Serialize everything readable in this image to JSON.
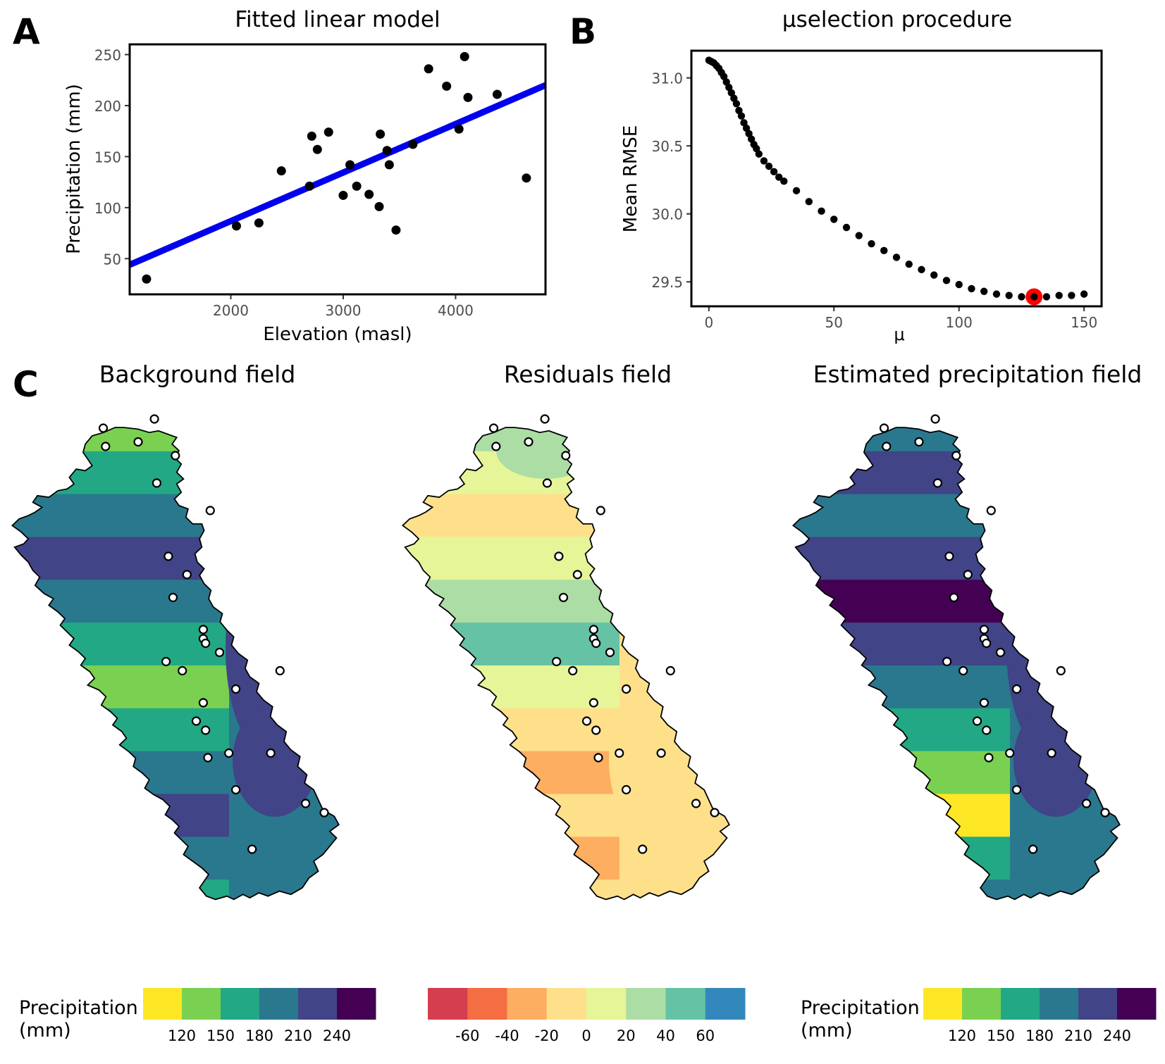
{
  "colors": {
    "line": "#0000ee",
    "point": "#000000",
    "highlight": "#ff0000",
    "outline": "#000000",
    "viridis": [
      "#fde725",
      "#7ad151",
      "#22a884",
      "#2a788e",
      "#414487",
      "#440154"
    ],
    "spectral": [
      "#d53e4f",
      "#f46d43",
      "#fdae61",
      "#fee08b",
      "#e6f598",
      "#abdda4",
      "#66c2a5",
      "#3288bd"
    ]
  },
  "panels": {
    "a": {
      "tag": "A"
    },
    "b": {
      "tag": "B"
    },
    "c": {
      "tag": "C",
      "maps": [
        {
          "title": "Background field",
          "palette": "viridis"
        },
        {
          "title": "Residuals field",
          "palette": "spectral"
        },
        {
          "title": "Estimated precipitation field",
          "palette": "viridis"
        }
      ],
      "legends": [
        {
          "title_line1": "Precipitation",
          "title_line2": "(mm)",
          "palette": "viridis",
          "labels": [
            "120",
            "150",
            "180",
            "210",
            "240"
          ]
        },
        {
          "title_line1": "",
          "title_line2": "",
          "palette": "spectral",
          "labels": [
            "-60",
            "-40",
            "-20",
            "0",
            "20",
            "40",
            "60"
          ]
        },
        {
          "title_line1": "Precipitation",
          "title_line2": "(mm)",
          "palette": "viridis",
          "labels": [
            "120",
            "150",
            "180",
            "210",
            "240"
          ]
        }
      ]
    }
  },
  "chart_data": [
    {
      "type": "scatter",
      "title": "Fitted linear model",
      "xlabel": "Elevation (masl)",
      "ylabel": "Precipitation (mm)",
      "xlim": [
        1100,
        4800
      ],
      "ylim": [
        15,
        260
      ],
      "xticks": [
        2000,
        3000,
        4000
      ],
      "yticks": [
        50,
        100,
        150,
        200,
        250
      ],
      "grid": false,
      "points": [
        {
          "x": 1250,
          "y": 30
        },
        {
          "x": 2050,
          "y": 82
        },
        {
          "x": 2250,
          "y": 85
        },
        {
          "x": 2450,
          "y": 136
        },
        {
          "x": 2700,
          "y": 121
        },
        {
          "x": 2720,
          "y": 170
        },
        {
          "x": 2770,
          "y": 157
        },
        {
          "x": 2870,
          "y": 174
        },
        {
          "x": 3000,
          "y": 112
        },
        {
          "x": 3060,
          "y": 142
        },
        {
          "x": 3120,
          "y": 121
        },
        {
          "x": 3230,
          "y": 113
        },
        {
          "x": 3320,
          "y": 101
        },
        {
          "x": 3330,
          "y": 172
        },
        {
          "x": 3390,
          "y": 156
        },
        {
          "x": 3410,
          "y": 142
        },
        {
          "x": 3470,
          "y": 78
        },
        {
          "x": 3620,
          "y": 162
        },
        {
          "x": 3760,
          "y": 236
        },
        {
          "x": 3920,
          "y": 219
        },
        {
          "x": 4030,
          "y": 177
        },
        {
          "x": 4080,
          "y": 248
        },
        {
          "x": 4110,
          "y": 208
        },
        {
          "x": 4370,
          "y": 211
        },
        {
          "x": 4630,
          "y": 129
        }
      ],
      "fit": {
        "x": [
          1100,
          4800
        ],
        "y": [
          44,
          220
        ]
      }
    },
    {
      "type": "scatter",
      "title": "μselection procedure",
      "xlabel": "μ",
      "ylabel": "Mean RMSE",
      "xlim": [
        -7,
        157
      ],
      "ylim": [
        29.32,
        31.2
      ],
      "xticks": [
        0,
        50,
        100,
        150
      ],
      "yticks": [
        29.5,
        30.0,
        30.5,
        31.0
      ],
      "grid": false,
      "x": [
        0,
        1,
        2,
        3,
        4,
        5,
        6,
        7,
        8,
        9,
        10,
        11,
        12,
        13,
        14,
        15,
        16,
        17,
        18,
        19,
        20,
        22,
        24,
        26,
        28,
        30,
        35,
        40,
        45,
        50,
        55,
        60,
        65,
        70,
        75,
        80,
        85,
        90,
        95,
        100,
        105,
        110,
        115,
        120,
        125,
        130,
        135,
        140,
        145,
        150
      ],
      "y": [
        31.13,
        31.12,
        31.11,
        31.09,
        31.07,
        31.04,
        31.01,
        30.97,
        30.93,
        30.89,
        30.85,
        30.81,
        30.76,
        30.72,
        30.67,
        30.63,
        30.59,
        30.55,
        30.51,
        30.48,
        30.44,
        30.39,
        30.35,
        30.31,
        30.27,
        30.24,
        30.17,
        30.09,
        30.02,
        29.96,
        29.9,
        29.84,
        29.78,
        29.73,
        29.68,
        29.63,
        29.59,
        29.55,
        29.51,
        29.48,
        29.45,
        29.43,
        29.41,
        29.4,
        29.39,
        29.39,
        29.39,
        29.4,
        29.4,
        29.41
      ],
      "selected": {
        "x": 130,
        "y": 29.39
      }
    }
  ]
}
